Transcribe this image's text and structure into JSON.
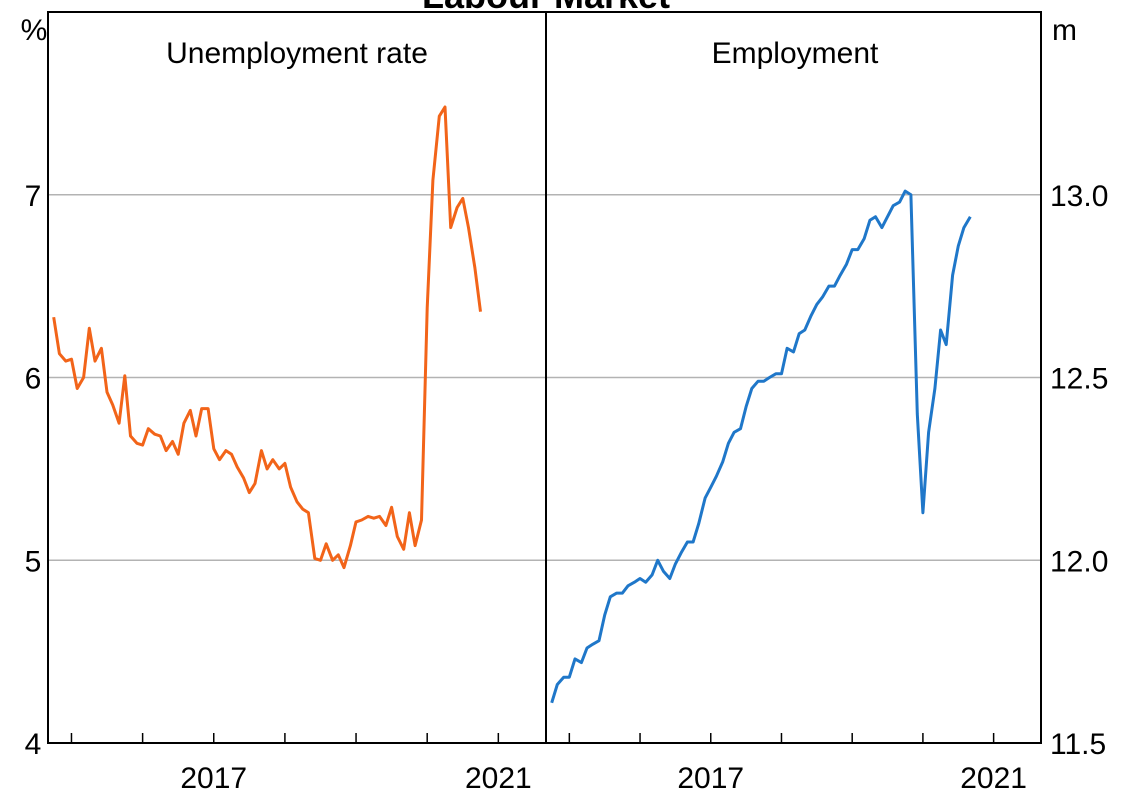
{
  "chart_data": {
    "type": "line",
    "title": "Labour Market",
    "colors": {
      "unemployment": "#f26419",
      "employment": "#1f77c9",
      "grid": "#b3b3b3",
      "axis": "#000000"
    },
    "x_range": [
      2014.67,
      2021.67
    ],
    "x_ticks": [
      2015,
      2016,
      2017,
      2018,
      2019,
      2020,
      2021
    ],
    "x_tick_labels": [
      "2017",
      "2021"
    ],
    "panels": [
      {
        "title": "Unemployment rate",
        "unit": "%",
        "ylim": [
          4,
          8
        ],
        "y_ticks": [
          4,
          5,
          6,
          7
        ],
        "y_tick_labels": [
          "4",
          "5",
          "6",
          "7"
        ],
        "series": [
          {
            "values": [
              [
                2014.75,
                6.33
              ],
              [
                2014.83,
                6.13
              ],
              [
                2014.92,
                6.09
              ],
              [
                2015.0,
                6.1
              ],
              [
                2015.08,
                5.94
              ],
              [
                2015.17,
                6.0
              ],
              [
                2015.25,
                6.27
              ],
              [
                2015.33,
                6.09
              ],
              [
                2015.42,
                6.16
              ],
              [
                2015.5,
                5.92
              ],
              [
                2015.58,
                5.85
              ],
              [
                2015.67,
                5.75
              ],
              [
                2015.75,
                6.01
              ],
              [
                2015.83,
                5.68
              ],
              [
                2015.92,
                5.64
              ],
              [
                2016.0,
                5.63
              ],
              [
                2016.08,
                5.72
              ],
              [
                2016.17,
                5.69
              ],
              [
                2016.25,
                5.68
              ],
              [
                2016.33,
                5.6
              ],
              [
                2016.42,
                5.65
              ],
              [
                2016.5,
                5.58
              ],
              [
                2016.58,
                5.75
              ],
              [
                2016.67,
                5.82
              ],
              [
                2016.75,
                5.68
              ],
              [
                2016.83,
                5.83
              ],
              [
                2016.92,
                5.83
              ],
              [
                2017.0,
                5.61
              ],
              [
                2017.08,
                5.55
              ],
              [
                2017.17,
                5.6
              ],
              [
                2017.25,
                5.58
              ],
              [
                2017.33,
                5.51
              ],
              [
                2017.42,
                5.45
              ],
              [
                2017.5,
                5.37
              ],
              [
                2017.58,
                5.42
              ],
              [
                2017.67,
                5.6
              ],
              [
                2017.75,
                5.5
              ],
              [
                2017.83,
                5.55
              ],
              [
                2017.92,
                5.5
              ],
              [
                2018.0,
                5.53
              ],
              [
                2018.08,
                5.4
              ],
              [
                2018.17,
                5.32
              ],
              [
                2018.25,
                5.28
              ],
              [
                2018.33,
                5.26
              ],
              [
                2018.42,
                5.01
              ],
              [
                2018.5,
                5.0
              ],
              [
                2018.58,
                5.09
              ],
              [
                2018.67,
                5.0
              ],
              [
                2018.75,
                5.03
              ],
              [
                2018.83,
                4.96
              ],
              [
                2018.92,
                5.08
              ],
              [
                2019.0,
                5.21
              ],
              [
                2019.08,
                5.22
              ],
              [
                2019.17,
                5.24
              ],
              [
                2019.25,
                5.23
              ],
              [
                2019.33,
                5.24
              ],
              [
                2019.42,
                5.19
              ],
              [
                2019.5,
                5.29
              ],
              [
                2019.58,
                5.13
              ],
              [
                2019.67,
                5.06
              ],
              [
                2019.75,
                5.26
              ],
              [
                2019.83,
                5.08
              ],
              [
                2019.92,
                5.22
              ],
              [
                2020.0,
                6.38
              ],
              [
                2020.08,
                7.08
              ],
              [
                2020.17,
                7.43
              ],
              [
                2020.25,
                7.48
              ],
              [
                2020.33,
                6.82
              ],
              [
                2020.42,
                6.93
              ],
              [
                2020.5,
                6.98
              ],
              [
                2020.58,
                6.82
              ],
              [
                2020.67,
                6.6
              ],
              [
                2020.75,
                6.36
              ]
            ]
          }
        ]
      },
      {
        "title": "Employment",
        "unit": "m",
        "ylim": [
          11.5,
          13.5
        ],
        "y_ticks": [
          11.5,
          12.0,
          12.5,
          13.0
        ],
        "y_tick_labels": [
          "11.5",
          "12.0",
          "12.5",
          "13.0"
        ],
        "series": [
          {
            "values": [
              [
                2014.75,
                11.61
              ],
              [
                2014.83,
                11.66
              ],
              [
                2014.92,
                11.68
              ],
              [
                2015.0,
                11.68
              ],
              [
                2015.08,
                11.73
              ],
              [
                2015.17,
                11.72
              ],
              [
                2015.25,
                11.76
              ],
              [
                2015.33,
                11.77
              ],
              [
                2015.42,
                11.78
              ],
              [
                2015.5,
                11.85
              ],
              [
                2015.58,
                11.9
              ],
              [
                2015.67,
                11.91
              ],
              [
                2015.75,
                11.91
              ],
              [
                2015.83,
                11.93
              ],
              [
                2015.92,
                11.94
              ],
              [
                2016.0,
                11.95
              ],
              [
                2016.08,
                11.94
              ],
              [
                2016.17,
                11.96
              ],
              [
                2016.25,
                12.0
              ],
              [
                2016.33,
                11.97
              ],
              [
                2016.42,
                11.95
              ],
              [
                2016.5,
                11.99
              ],
              [
                2016.58,
                12.02
              ],
              [
                2016.67,
                12.05
              ],
              [
                2016.75,
                12.05
              ],
              [
                2016.83,
                12.1
              ],
              [
                2016.92,
                12.17
              ],
              [
                2017.0,
                12.2
              ],
              [
                2017.08,
                12.23
              ],
              [
                2017.17,
                12.27
              ],
              [
                2017.25,
                12.32
              ],
              [
                2017.33,
                12.35
              ],
              [
                2017.42,
                12.36
              ],
              [
                2017.5,
                12.42
              ],
              [
                2017.58,
                12.47
              ],
              [
                2017.67,
                12.49
              ],
              [
                2017.75,
                12.49
              ],
              [
                2017.83,
                12.5
              ],
              [
                2017.92,
                12.51
              ],
              [
                2018.0,
                12.51
              ],
              [
                2018.08,
                12.58
              ],
              [
                2018.17,
                12.57
              ],
              [
                2018.25,
                12.62
              ],
              [
                2018.33,
                12.63
              ],
              [
                2018.42,
                12.67
              ],
              [
                2018.5,
                12.7
              ],
              [
                2018.58,
                12.72
              ],
              [
                2018.67,
                12.75
              ],
              [
                2018.75,
                12.75
              ],
              [
                2018.83,
                12.78
              ],
              [
                2018.92,
                12.81
              ],
              [
                2019.0,
                12.85
              ],
              [
                2019.08,
                12.85
              ],
              [
                2019.17,
                12.88
              ],
              [
                2019.25,
                12.93
              ],
              [
                2019.33,
                12.94
              ],
              [
                2019.42,
                12.91
              ],
              [
                2019.5,
                12.94
              ],
              [
                2019.58,
                12.97
              ],
              [
                2019.67,
                12.98
              ],
              [
                2019.75,
                13.01
              ],
              [
                2019.83,
                13.0
              ],
              [
                2019.92,
                12.4
              ],
              [
                2020.0,
                12.13
              ],
              [
                2020.08,
                12.35
              ],
              [
                2020.17,
                12.47
              ],
              [
                2020.25,
                12.63
              ],
              [
                2020.33,
                12.59
              ],
              [
                2020.42,
                12.78
              ],
              [
                2020.5,
                12.86
              ],
              [
                2020.58,
                12.91
              ],
              [
                2020.67,
                12.94
              ]
            ]
          }
        ]
      }
    ]
  }
}
